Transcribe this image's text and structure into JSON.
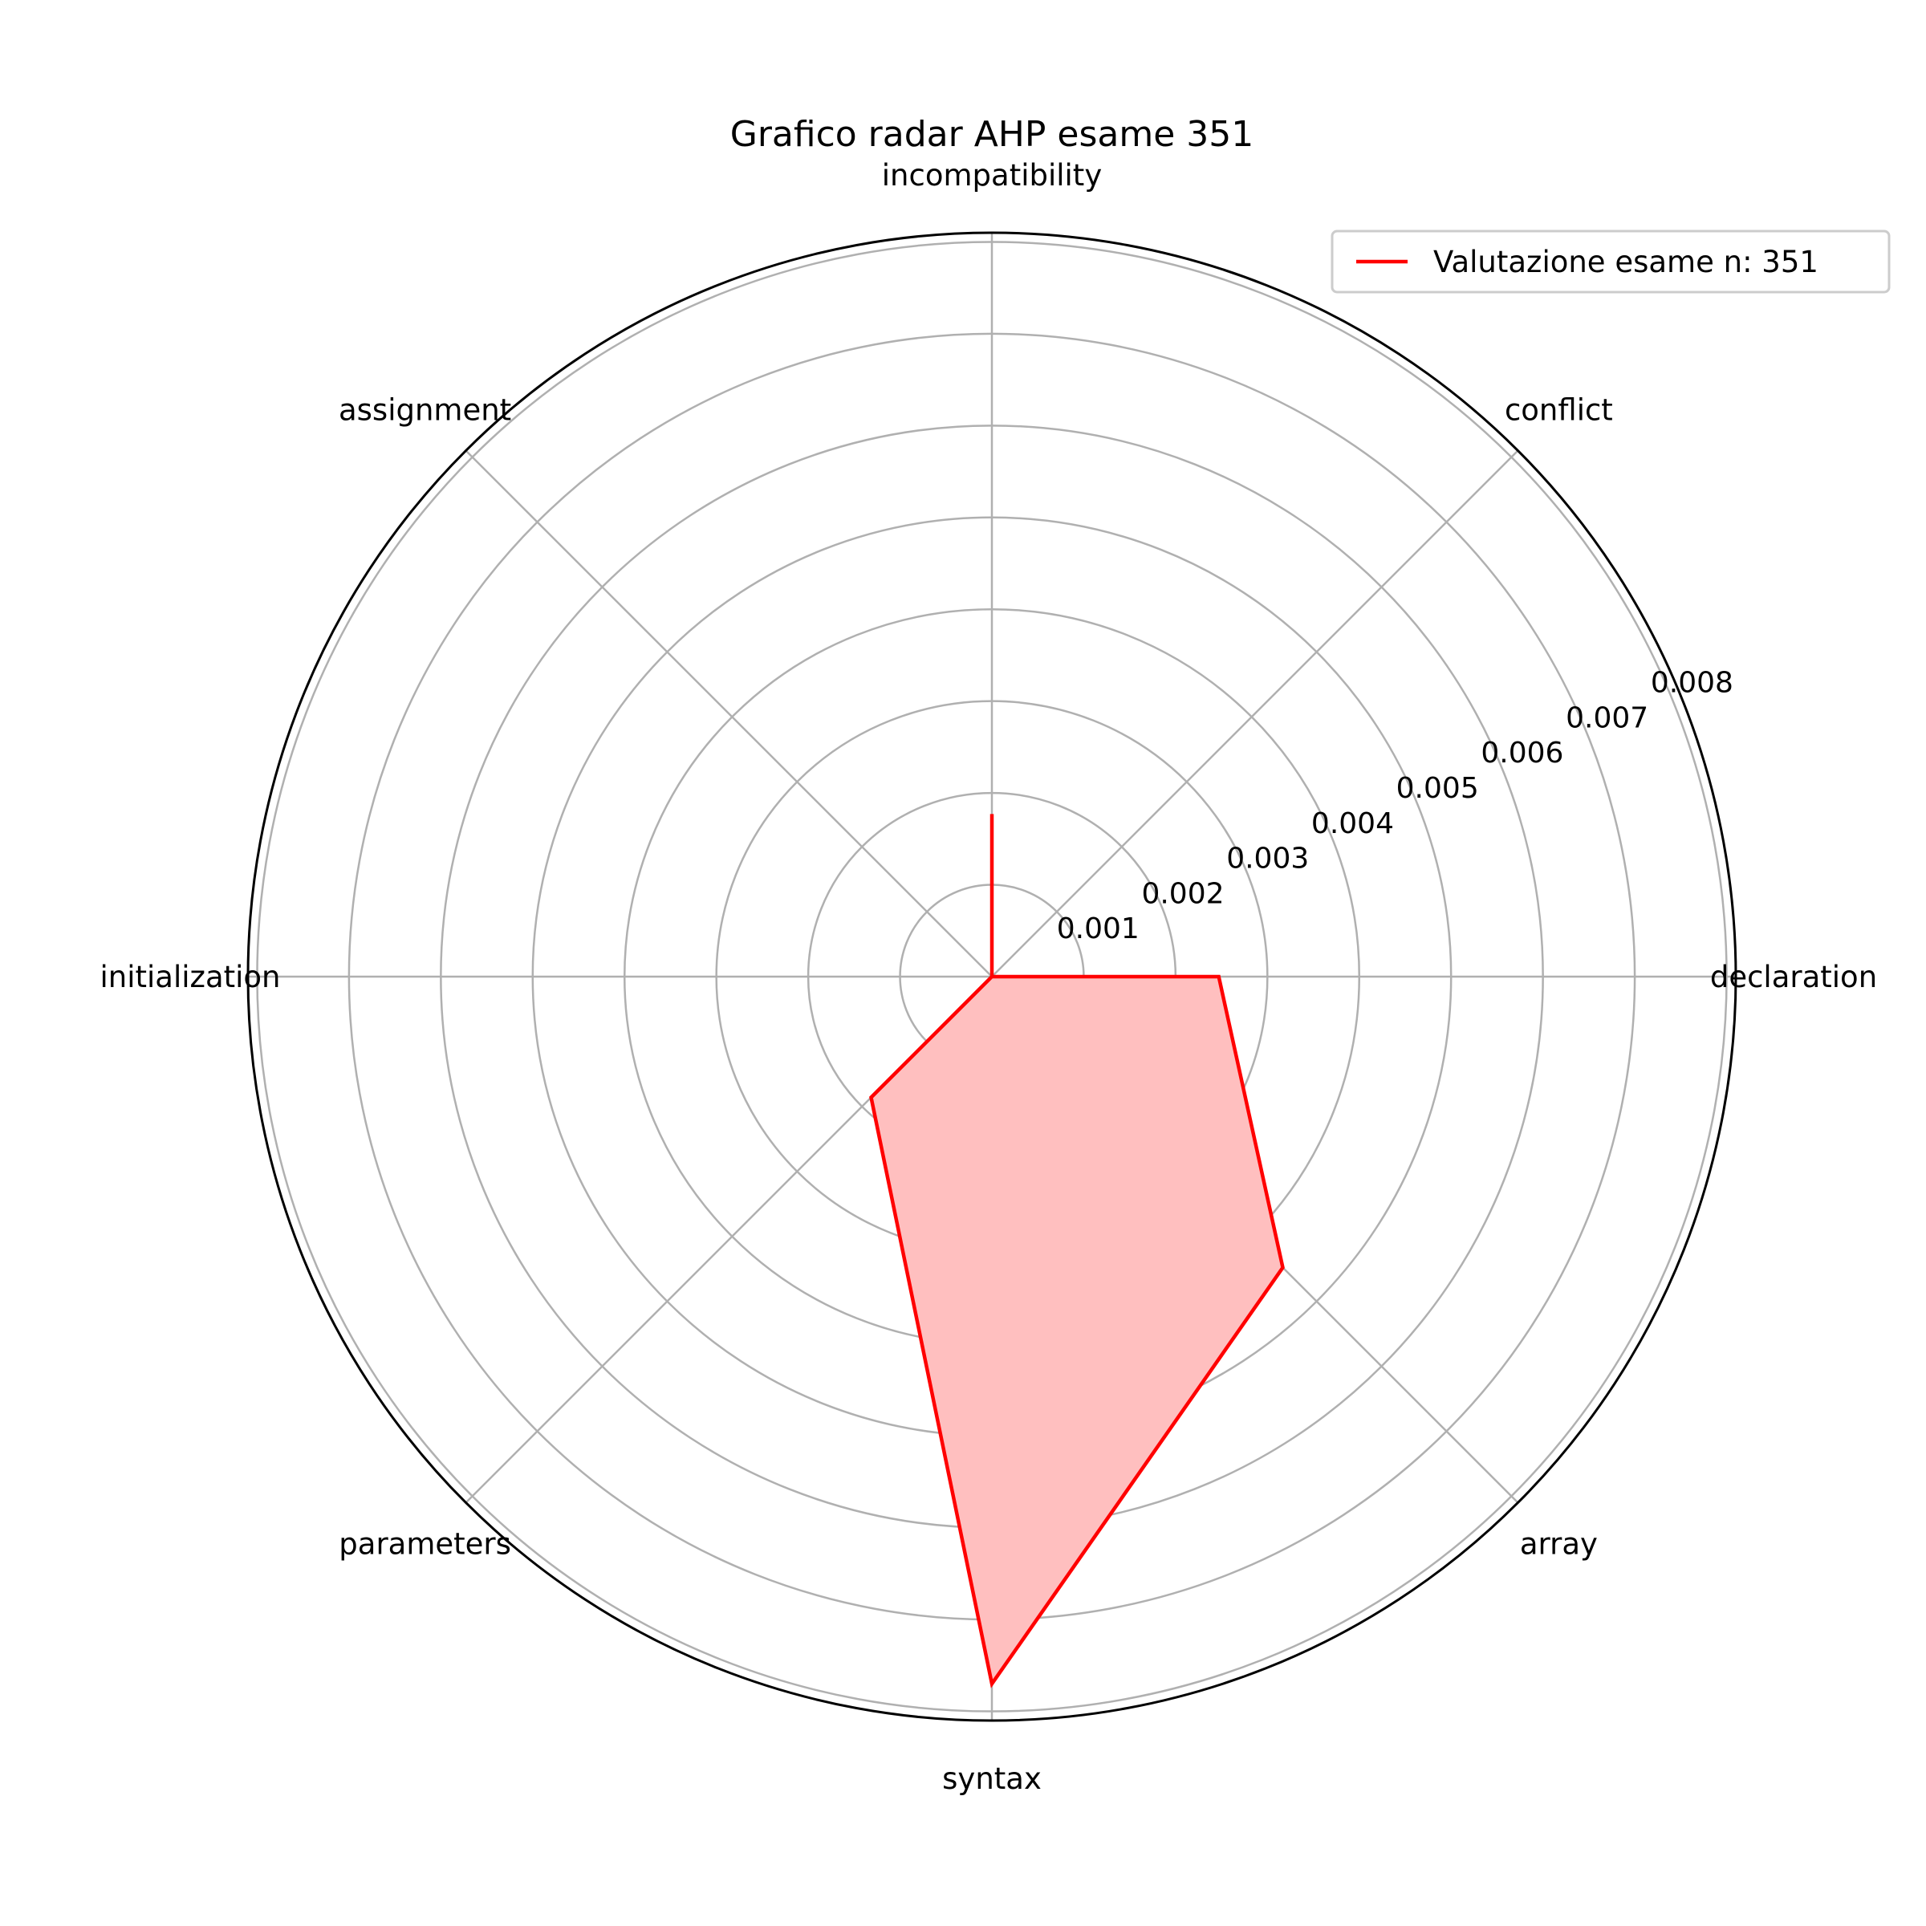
{
  "chart_data": {
    "type": "radar",
    "title": "Grafico radar AHP esame 351",
    "categories": [
      "declaration",
      "conflict",
      "incompatibility",
      "assignment",
      "initialization",
      "parameters",
      "syntax",
      "array"
    ],
    "series": [
      {
        "name": "Valutazione esame n: 351",
        "values": [
          0.00247,
          0.0,
          0.00177,
          0.0,
          0.0,
          0.00186,
          0.0077,
          0.00448
        ],
        "color": "#ff0000",
        "fill": "#ffbfbf"
      }
    ],
    "r_ticks": [
      "0.001",
      "0.002",
      "0.003",
      "0.004",
      "0.005",
      "0.006",
      "0.007",
      "0.008"
    ],
    "r_tick_values": [
      0.001,
      0.002,
      0.003,
      0.004,
      0.005,
      0.006,
      0.007,
      0.008
    ],
    "rlim": [
      0,
      0.0081
    ],
    "grid": true,
    "legend_position": "top-right"
  }
}
